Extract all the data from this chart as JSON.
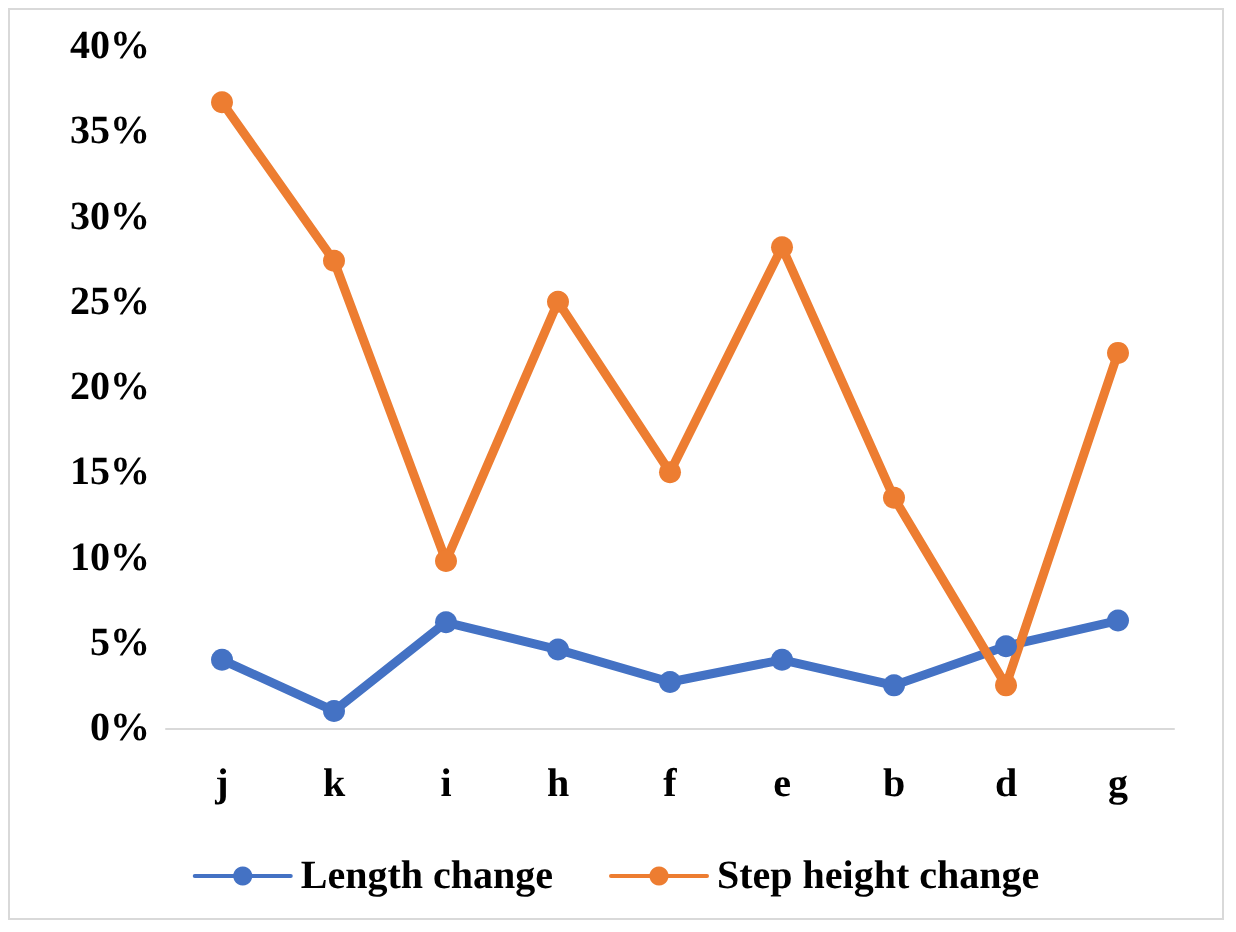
{
  "chart_data": {
    "type": "line",
    "categories": [
      "j",
      "k",
      "i",
      "h",
      "f",
      "e",
      "b",
      "d",
      "g"
    ],
    "series": [
      {
        "name": "Length change",
        "color": "#4472c4",
        "values": [
          4.0,
          1.0,
          6.2,
          4.6,
          2.7,
          4.0,
          2.5,
          4.8,
          6.3
        ]
      },
      {
        "name": "Step height change",
        "color": "#ed7d31",
        "values": [
          36.7,
          27.4,
          9.8,
          25.0,
          15.0,
          28.2,
          13.5,
          2.5,
          22.0
        ]
      }
    ],
    "ylim": [
      0,
      40
    ],
    "yticks": [
      {
        "value": 0,
        "label": "0%"
      },
      {
        "value": 5,
        "label": "5%"
      },
      {
        "value": 10,
        "label": "10%"
      },
      {
        "value": 15,
        "label": "15%"
      },
      {
        "value": 20,
        "label": "20%"
      },
      {
        "value": 25,
        "label": "25%"
      },
      {
        "value": 30,
        "label": "30%"
      },
      {
        "value": 35,
        "label": "35%"
      },
      {
        "value": 40,
        "label": "40%"
      }
    ],
    "grid": false,
    "legend": "bottom",
    "marker": "circle",
    "line_style": "solid"
  }
}
